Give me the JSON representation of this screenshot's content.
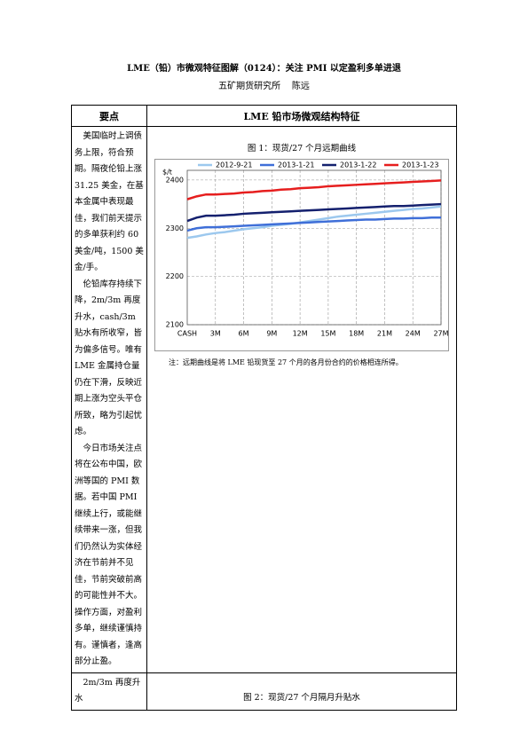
{
  "header": {
    "title": "LME（铅）市微观特征图解（0124）：关注 PMI 以定盈利多单进退",
    "org": "五矿期货研究所",
    "author": "陈远"
  },
  "table": {
    "headers": [
      "要点",
      "LME 铅市场微观结构特征"
    ],
    "rows": [
      {
        "points": [
          "美国临时上调债务上限，符合预期。隔夜伦铅上涨 31.25 美金，在基本金属中表现最佳，我们前天提示的多单获利约 60 美金/吨，1500 美金/手。",
          "伦铅库存持续下降，2m/3m 再度升水，cash/3m 贴水有所收窄，皆为偏多信号。唯有 LME 金属持仓量仍在下滑，反映近期上涨为空头平仓所致，略为引起忧虑。",
          "今日市场关注点将在公布中国，欧洲等国的 PMI 数据。若中国 PMI 继续上行，或能继续带来一涨，但我们仍然认为实体经济在节前并不见佳，节前突破前高的可能性并不大。操作方面，对盈利多单，继续谨慎持有。谨慎者，逢高部分止盈。"
        ],
        "caption": "图 1：现货/27 个月远期曲线",
        "note": "注：远期曲线是将 LME 铅现货至 27 个月的各月份合约的价格相连所得。"
      },
      {
        "points": [
          "2m/3m 再度升水"
        ],
        "caption": "图 2：现货/27 个月隔月升贴水"
      }
    ]
  },
  "chart_data": {
    "type": "line",
    "ylabel": "$/t",
    "categories": [
      "CASH",
      null,
      null,
      "3M",
      null,
      null,
      "6M",
      null,
      null,
      "9M",
      null,
      null,
      "12M",
      null,
      null,
      "15M",
      null,
      null,
      "18M",
      null,
      null,
      "21M",
      null,
      null,
      "24M",
      null,
      null,
      "27M"
    ],
    "series": [
      {
        "name": "2012-9-21",
        "color": "#9cc8ee",
        "values": [
          2280,
          2283,
          2287,
          2290,
          2292,
          2295,
          2298,
          2300,
          2302,
          2305,
          2307,
          2309,
          2312,
          2315,
          2318,
          2321,
          2324,
          2326,
          2328,
          2330,
          2332,
          2334,
          2336,
          2338,
          2340,
          2341,
          2343,
          2345
        ]
      },
      {
        "name": "2013-1-21",
        "color": "#3f6fd8",
        "values": [
          2295,
          2300,
          2302,
          2302,
          2303,
          2304,
          2305,
          2306,
          2307,
          2308,
          2309,
          2310,
          2311,
          2312,
          2313,
          2314,
          2315,
          2316,
          2317,
          2318,
          2318,
          2319,
          2320,
          2320,
          2321,
          2321,
          2322,
          2322
        ]
      },
      {
        "name": "2013-1-22",
        "color": "#14206e",
        "values": [
          2315,
          2322,
          2326,
          2326,
          2327,
          2328,
          2330,
          2331,
          2332,
          2333,
          2334,
          2335,
          2336,
          2337,
          2338,
          2339,
          2340,
          2341,
          2342,
          2343,
          2344,
          2345,
          2346,
          2346,
          2347,
          2348,
          2349,
          2350
        ]
      },
      {
        "name": "2013-1-23",
        "color": "#e61e1e",
        "values": [
          2360,
          2366,
          2370,
          2370,
          2371,
          2372,
          2374,
          2375,
          2377,
          2378,
          2380,
          2381,
          2383,
          2384,
          2385,
          2387,
          2388,
          2389,
          2390,
          2391,
          2392,
          2393,
          2394,
          2395,
          2396,
          2397,
          2398,
          2399
        ]
      }
    ],
    "ylim": [
      2100,
      2420
    ],
    "yticks": [
      2100,
      2200,
      2300,
      2400
    ],
    "grid": true
  }
}
